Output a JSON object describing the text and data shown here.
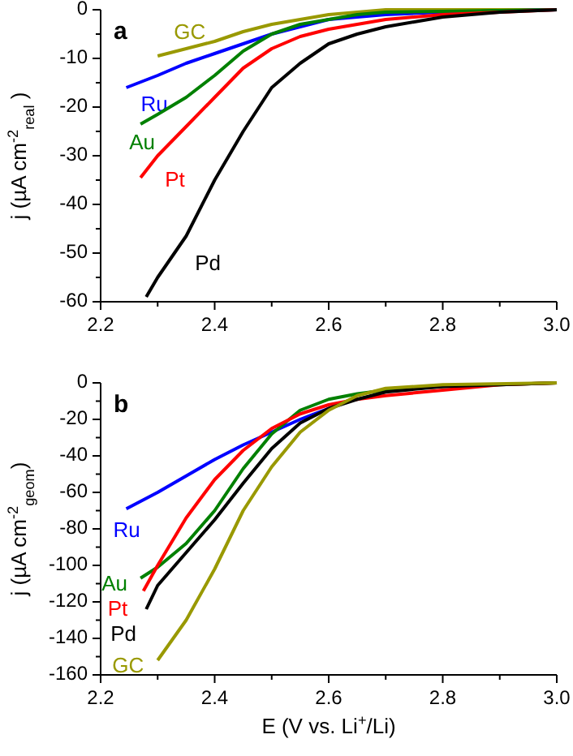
{
  "chart_data": [
    {
      "type": "line",
      "ylabel": "j (µA cm$^{-2}$$_{real}$ )",
      "annotations": [
        "a"
      ],
      "xlim": [
        2.2,
        3.0
      ],
      "xticks": [
        2.2,
        2.4,
        2.6,
        2.8,
        {
          "value": 3,
          "label": "3.0"
        }
      ],
      "ylim": [
        -60,
        0
      ],
      "yticks": [
        -60,
        -50,
        -40,
        -30,
        -20,
        -10,
        0
      ],
      "grid": false,
      "legend": false,
      "marker": "none",
      "line_style": "solid",
      "series": [
        {
          "name": "GC",
          "color": "#999900",
          "x": [
            2.3,
            2.35,
            2.4,
            2.45,
            2.5,
            2.55,
            2.6,
            2.7,
            2.8,
            3.0
          ],
          "values": [
            -9.5,
            -8,
            -6.5,
            -4.5,
            -3,
            -2,
            -1,
            0,
            0,
            0
          ]
        },
        {
          "name": "Ru",
          "color": "#0000ff",
          "x": [
            2.245,
            2.3,
            2.35,
            2.4,
            2.45,
            2.5,
            2.55,
            2.6,
            2.65,
            2.7,
            2.8,
            3.0
          ],
          "values": [
            -16,
            -13.5,
            -11,
            -9,
            -7,
            -5,
            -3.5,
            -2,
            -1.5,
            -1,
            -0.5,
            0
          ]
        },
        {
          "name": "Au",
          "color": "#008000",
          "x": [
            2.27,
            2.3,
            2.35,
            2.4,
            2.45,
            2.5,
            2.55,
            2.6,
            2.65,
            2.7,
            3.0
          ],
          "values": [
            -23.5,
            -21.5,
            -18,
            -13.5,
            -8.5,
            -5,
            -3,
            -2,
            -1,
            -0.5,
            0
          ]
        },
        {
          "name": "Pt",
          "color": "#ff0000",
          "x": [
            2.27,
            2.3,
            2.35,
            2.4,
            2.45,
            2.5,
            2.55,
            2.6,
            2.65,
            2.7,
            2.8,
            3.0
          ],
          "values": [
            -34.5,
            -30,
            -24,
            -18,
            -12,
            -8,
            -5.5,
            -4,
            -3,
            -2,
            -1,
            0
          ]
        },
        {
          "name": "Pd",
          "color": "#000000",
          "x": [
            2.28,
            2.3,
            2.35,
            2.4,
            2.45,
            2.5,
            2.55,
            2.6,
            2.65,
            2.7,
            2.75,
            2.8,
            2.9,
            3.0
          ],
          "values": [
            -59,
            -55,
            -46.5,
            -35,
            -25,
            -16,
            -11,
            -7,
            -5,
            -3.5,
            -2.5,
            -1.5,
            -0.5,
            0
          ]
        }
      ]
    },
    {
      "type": "line",
      "xlabel": "E (V vs. Li$^{+}$/Li)",
      "ylabel": "j (µA cm$^{-2}$$_{geom}$)",
      "annotations": [
        "b"
      ],
      "xlim": [
        2.2,
        3.0
      ],
      "xticks": [
        2.2,
        2.4,
        2.6,
        2.8,
        {
          "value": 3,
          "label": "3.0"
        }
      ],
      "ylim": [
        -160,
        0
      ],
      "yticks": [
        -160,
        -140,
        -120,
        -100,
        -80,
        -60,
        -40,
        -20,
        0
      ],
      "grid": false,
      "legend": false,
      "marker": "none",
      "line_style": "solid",
      "series": [
        {
          "name": "Ru",
          "color": "#0000ff",
          "x": [
            2.245,
            2.3,
            2.35,
            2.4,
            2.45,
            2.5,
            2.55,
            2.6
          ],
          "values": [
            -69,
            -60,
            -51,
            -42,
            -34,
            -27,
            -20,
            -14
          ]
        },
        {
          "name": "Au",
          "color": "#008000",
          "x": [
            2.27,
            2.3,
            2.35,
            2.4,
            2.45,
            2.5,
            2.55,
            2.6,
            2.65,
            2.7,
            2.8,
            3.0
          ],
          "values": [
            -107,
            -101,
            -88,
            -70,
            -47,
            -28,
            -15,
            -9,
            -6,
            -4,
            -2,
            0
          ]
        },
        {
          "name": "Pt",
          "color": "#ff0000",
          "x": [
            2.275,
            2.3,
            2.35,
            2.4,
            2.45,
            2.5,
            2.55,
            2.6,
            2.65,
            2.7,
            2.8,
            2.9,
            3.0
          ],
          "values": [
            -114,
            -100,
            -74,
            -53,
            -37,
            -25,
            -17,
            -12,
            -9,
            -7,
            -4,
            -1,
            0
          ]
        },
        {
          "name": "Pd",
          "color": "#000000",
          "x": [
            2.28,
            2.3,
            2.35,
            2.4,
            2.45,
            2.5,
            2.55,
            2.6,
            2.65,
            2.7,
            2.8,
            3.0
          ],
          "values": [
            -124,
            -111,
            -93,
            -75,
            -55,
            -36,
            -22,
            -14,
            -9,
            -5,
            -2,
            0
          ]
        },
        {
          "name": "GC",
          "color": "#999900",
          "x": [
            2.3,
            2.35,
            2.4,
            2.45,
            2.5,
            2.55,
            2.6,
            2.65,
            2.7,
            2.8,
            3.0
          ],
          "values": [
            -152,
            -130,
            -102,
            -70,
            -46,
            -27,
            -15,
            -7,
            -3,
            -1,
            0
          ]
        }
      ]
    }
  ]
}
